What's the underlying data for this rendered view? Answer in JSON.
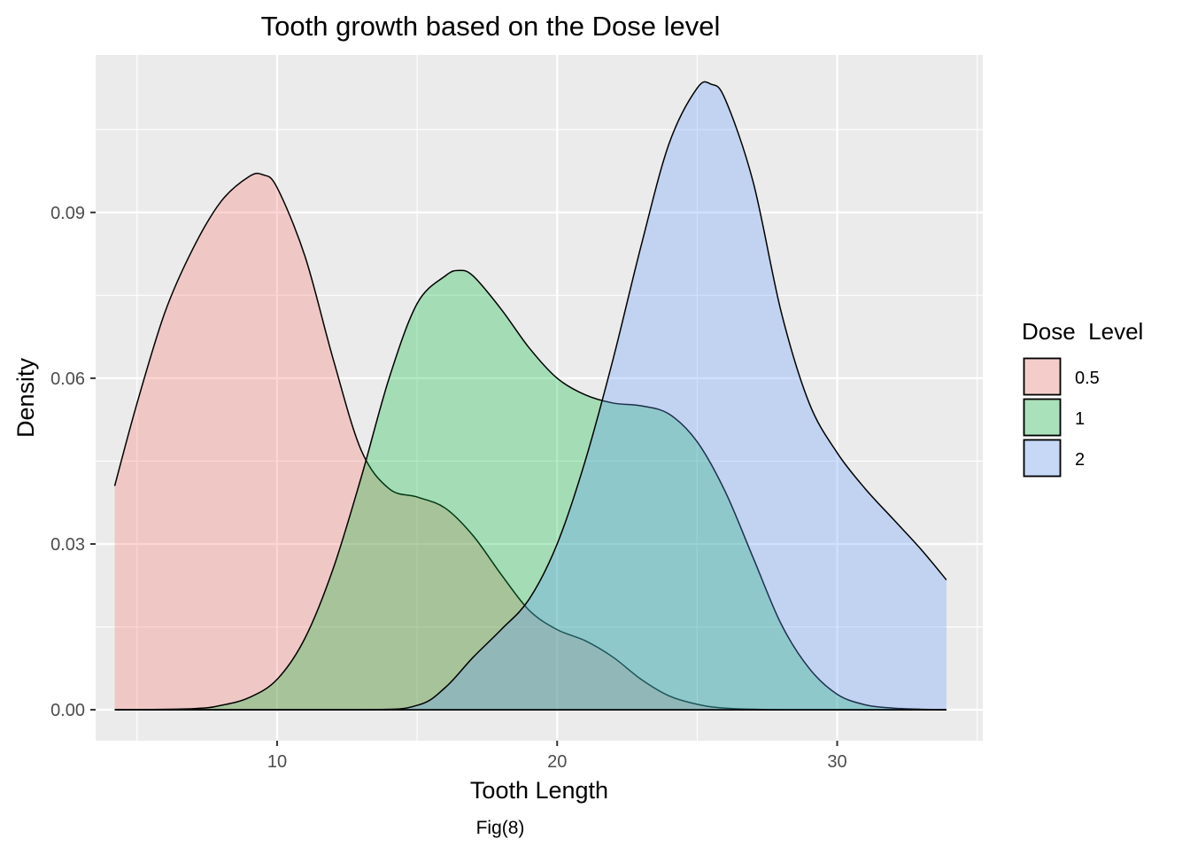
{
  "chart_data": {
    "type": "area",
    "title": "Tooth growth based on the Dose level",
    "xlabel": "Tooth Length",
    "ylabel": "Density",
    "caption": "Fig(8)",
    "xlim": [
      3.52,
      35.2
    ],
    "ylim": [
      -0.0056,
      0.1185
    ],
    "x_ticks": [
      10,
      20,
      30
    ],
    "x_tick_labels": [
      "10",
      "20",
      "30"
    ],
    "y_ticks": [
      0,
      0.03,
      0.06,
      0.09
    ],
    "y_tick_labels": [
      "0.00",
      "0.03",
      "0.06",
      "0.09"
    ],
    "grid": true,
    "legend": {
      "title": "Dose  Level",
      "placement": "right"
    },
    "series": [
      {
        "name": "0.5",
        "color": "#F8766D",
        "x": [
          4.2,
          5.0,
          6.0,
          7.0,
          8.0,
          9.0,
          9.5,
          10.0,
          11.0,
          12.0,
          13.0,
          14.0,
          15.0,
          16.0,
          17.0,
          18.0,
          19.0,
          20.0,
          21.0,
          22.0,
          23.0,
          24.0,
          25.0,
          26.0,
          28.0,
          30.0,
          33.9
        ],
        "y": [
          0.0405,
          0.0555,
          0.072,
          0.0835,
          0.092,
          0.0965,
          0.0968,
          0.0945,
          0.082,
          0.0635,
          0.047,
          0.04,
          0.0385,
          0.0365,
          0.0315,
          0.0245,
          0.018,
          0.0145,
          0.0125,
          0.0095,
          0.0055,
          0.0025,
          0.001,
          0.0003,
          0.0,
          0.0,
          0.0
        ]
      },
      {
        "name": "1",
        "color": "#00BA38",
        "x": [
          4.2,
          7.0,
          8.0,
          9.0,
          10.0,
          11.0,
          12.0,
          13.0,
          14.0,
          15.0,
          16.0,
          16.5,
          17.0,
          18.0,
          19.0,
          20.0,
          21.0,
          22.0,
          23.0,
          24.0,
          25.0,
          26.0,
          27.0,
          28.0,
          29.0,
          30.0,
          31.0,
          32.0,
          33.0,
          33.9
        ],
        "y": [
          0.0,
          0.0002,
          0.0008,
          0.0022,
          0.0055,
          0.013,
          0.0255,
          0.042,
          0.06,
          0.0735,
          0.0785,
          0.0795,
          0.0785,
          0.0725,
          0.0655,
          0.06,
          0.057,
          0.0555,
          0.055,
          0.0535,
          0.0485,
          0.0395,
          0.0275,
          0.0155,
          0.0075,
          0.0028,
          0.0009,
          0.0003,
          0.0001,
          0.0
        ]
      },
      {
        "name": "2",
        "color": "#619CFF",
        "x": [
          4.2,
          13.0,
          15.0,
          16.0,
          17.0,
          18.0,
          19.0,
          20.0,
          21.0,
          22.0,
          23.0,
          24.0,
          25.0,
          25.5,
          26.0,
          27.0,
          28.0,
          29.0,
          30.0,
          31.0,
          32.0,
          33.0,
          33.9
        ],
        "y": [
          0.0,
          0.0,
          0.0008,
          0.004,
          0.0095,
          0.0145,
          0.02,
          0.03,
          0.045,
          0.0635,
          0.084,
          0.1025,
          0.1125,
          0.1132,
          0.1105,
          0.0955,
          0.072,
          0.0555,
          0.0465,
          0.04,
          0.0345,
          0.029,
          0.0235
        ]
      }
    ]
  }
}
